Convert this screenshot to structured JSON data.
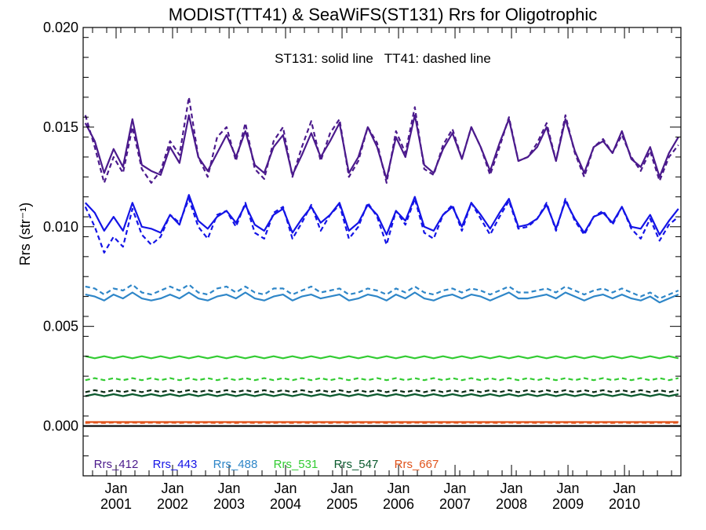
{
  "chart_data": {
    "type": "line",
    "title": "MODIST(TT41) & SeaWiFS(ST131)  Rrs for Oligotrophic",
    "ylabel": "Rrs (str⁻¹)",
    "xlabel": "",
    "annotation": "ST131: solid line   TT41: dashed line",
    "ylim": [
      -0.0025,
      0.02
    ],
    "yticks": [
      "0.000",
      "0.005",
      "0.010",
      "0.015",
      "0.020"
    ],
    "ytick_values": [
      0.0,
      0.005,
      0.01,
      0.015,
      0.02
    ],
    "xlim": [
      "2000-06-01",
      "2010-12-31"
    ],
    "xticks": [
      {
        "month": "Jan",
        "year": "2001",
        "date": "2001-01-01"
      },
      {
        "month": "Jan",
        "year": "2002",
        "date": "2002-01-01"
      },
      {
        "month": "Jan",
        "year": "2003",
        "date": "2003-01-01"
      },
      {
        "month": "Jan",
        "year": "2004",
        "date": "2004-01-01"
      },
      {
        "month": "Jan",
        "year": "2005",
        "date": "2005-01-01"
      },
      {
        "month": "Jan",
        "year": "2006",
        "date": "2006-01-01"
      },
      {
        "month": "Jan",
        "year": "2007",
        "date": "2007-01-01"
      },
      {
        "month": "Jan",
        "year": "2008",
        "date": "2008-01-01"
      },
      {
        "month": "Jan",
        "year": "2009",
        "date": "2009-01-01"
      },
      {
        "month": "Jan",
        "year": "2010",
        "date": "2010-01-01"
      }
    ],
    "x": [
      "2000-06",
      "2000-08",
      "2000-10",
      "2000-12",
      "2001-02",
      "2001-04",
      "2001-06",
      "2001-08",
      "2001-10",
      "2001-12",
      "2002-02",
      "2002-04",
      "2002-06",
      "2002-08",
      "2002-10",
      "2002-12",
      "2003-02",
      "2003-04",
      "2003-06",
      "2003-08",
      "2003-10",
      "2003-12",
      "2004-02",
      "2004-04",
      "2004-06",
      "2004-08",
      "2004-10",
      "2004-12",
      "2005-02",
      "2005-04",
      "2005-06",
      "2005-08",
      "2005-10",
      "2005-12",
      "2006-02",
      "2006-04",
      "2006-06",
      "2006-08",
      "2006-10",
      "2006-12",
      "2007-02",
      "2007-04",
      "2007-06",
      "2007-08",
      "2007-10",
      "2007-12",
      "2008-02",
      "2008-04",
      "2008-06",
      "2008-08",
      "2008-10",
      "2008-12",
      "2009-02",
      "2009-04",
      "2009-06",
      "2009-08",
      "2009-10",
      "2009-12",
      "2010-02",
      "2010-04",
      "2010-06",
      "2010-08",
      "2010-10",
      "2010-12"
    ],
    "series": [
      {
        "name": "Rrs_412",
        "source": "ST131",
        "style": "solid",
        "color": "#4B1A8C",
        "values": [
          0.0152,
          0.0143,
          0.0127,
          0.0139,
          0.013,
          0.0154,
          0.0131,
          0.0128,
          0.0126,
          0.014,
          0.0132,
          0.0156,
          0.0135,
          0.0128,
          0.0137,
          0.0146,
          0.0135,
          0.0148,
          0.0131,
          0.0127,
          0.014,
          0.0146,
          0.0126,
          0.0136,
          0.0147,
          0.0135,
          0.0143,
          0.0152,
          0.0127,
          0.0135,
          0.015,
          0.014,
          0.0124,
          0.0145,
          0.0135,
          0.0156,
          0.0131,
          0.0127,
          0.0139,
          0.0147,
          0.0134,
          0.015,
          0.014,
          0.0128,
          0.0142,
          0.0154,
          0.0133,
          0.0135,
          0.014,
          0.015,
          0.0133,
          0.0154,
          0.0138,
          0.0127,
          0.014,
          0.0143,
          0.0137,
          0.0148,
          0.0134,
          0.013,
          0.014,
          0.0125,
          0.0137,
          0.0145
        ]
      },
      {
        "name": "Rrs_412",
        "source": "TT41",
        "style": "dashed",
        "color": "#4B1A8C",
        "values": [
          0.0156,
          0.014,
          0.0122,
          0.0135,
          0.0127,
          0.015,
          0.0129,
          0.0122,
          0.0128,
          0.0143,
          0.0136,
          0.0165,
          0.0135,
          0.0125,
          0.0145,
          0.015,
          0.0133,
          0.0152,
          0.0129,
          0.0124,
          0.0143,
          0.015,
          0.0125,
          0.014,
          0.0153,
          0.0133,
          0.0147,
          0.0154,
          0.0125,
          0.0133,
          0.015,
          0.0142,
          0.0122,
          0.0148,
          0.0137,
          0.016,
          0.0129,
          0.0126,
          0.0141,
          0.0149,
          0.0134,
          0.015,
          0.014,
          0.0126,
          0.014,
          0.0155,
          0.0133,
          0.0135,
          0.0142,
          0.0152,
          0.0133,
          0.0156,
          0.0137,
          0.0125,
          0.014,
          0.0144,
          0.0137,
          0.0146,
          0.0135,
          0.0128,
          0.0138,
          0.0123,
          0.0135,
          0.0141
        ]
      },
      {
        "name": "Rrs_443",
        "source": "ST131",
        "style": "solid",
        "color": "#1414E6",
        "values": [
          0.0112,
          0.0107,
          0.0098,
          0.0105,
          0.0098,
          0.0112,
          0.01,
          0.0099,
          0.0097,
          0.0106,
          0.0101,
          0.0116,
          0.0103,
          0.0099,
          0.0105,
          0.0108,
          0.0102,
          0.0111,
          0.0101,
          0.0098,
          0.0106,
          0.0109,
          0.0097,
          0.0104,
          0.011,
          0.0102,
          0.0106,
          0.0112,
          0.0098,
          0.0102,
          0.0111,
          0.0106,
          0.0096,
          0.0108,
          0.0103,
          0.0115,
          0.01,
          0.0098,
          0.0106,
          0.011,
          0.01,
          0.0112,
          0.0106,
          0.0099,
          0.0107,
          0.0114,
          0.01,
          0.0101,
          0.0104,
          0.0111,
          0.0099,
          0.0113,
          0.0104,
          0.0097,
          0.0105,
          0.0107,
          0.0102,
          0.011,
          0.01,
          0.0099,
          0.0106,
          0.0096,
          0.0103,
          0.0109
        ]
      },
      {
        "name": "Rrs_443",
        "source": "TT41",
        "style": "dashed",
        "color": "#1414E6",
        "values": [
          0.011,
          0.01,
          0.0087,
          0.0095,
          0.009,
          0.0109,
          0.0096,
          0.0091,
          0.0095,
          0.0106,
          0.0102,
          0.0114,
          0.01,
          0.0094,
          0.0106,
          0.0108,
          0.01,
          0.0112,
          0.0097,
          0.0094,
          0.0107,
          0.011,
          0.0094,
          0.0102,
          0.0111,
          0.0098,
          0.0106,
          0.0111,
          0.0094,
          0.01,
          0.0112,
          0.0105,
          0.0091,
          0.0108,
          0.0101,
          0.0114,
          0.0097,
          0.0094,
          0.0106,
          0.0111,
          0.0098,
          0.0112,
          0.0104,
          0.0096,
          0.0105,
          0.0113,
          0.0099,
          0.01,
          0.0104,
          0.0112,
          0.0098,
          0.0114,
          0.0103,
          0.0096,
          0.0105,
          0.0108,
          0.0101,
          0.011,
          0.0099,
          0.0094,
          0.0104,
          0.0093,
          0.0101,
          0.0105
        ]
      },
      {
        "name": "Rrs_488",
        "source": "ST131",
        "style": "solid",
        "color": "#2E86C8",
        "values": [
          0.0066,
          0.0065,
          0.0063,
          0.0066,
          0.0064,
          0.0067,
          0.0064,
          0.0063,
          0.0064,
          0.0066,
          0.0064,
          0.0067,
          0.0064,
          0.0063,
          0.0065,
          0.0066,
          0.0064,
          0.0067,
          0.0064,
          0.0063,
          0.0065,
          0.0066,
          0.0063,
          0.0065,
          0.0066,
          0.0064,
          0.0065,
          0.0066,
          0.0063,
          0.0064,
          0.0066,
          0.0065,
          0.0063,
          0.0066,
          0.0064,
          0.0067,
          0.0064,
          0.0063,
          0.0065,
          0.0066,
          0.0064,
          0.0066,
          0.0065,
          0.0063,
          0.0065,
          0.0067,
          0.0064,
          0.0064,
          0.0065,
          0.0066,
          0.0064,
          0.0067,
          0.0065,
          0.0063,
          0.0065,
          0.0066,
          0.0064,
          0.0066,
          0.0064,
          0.0063,
          0.0065,
          0.0062,
          0.0064,
          0.0066
        ]
      },
      {
        "name": "Rrs_488",
        "source": "TT41",
        "style": "dashed",
        "color": "#2E86C8",
        "values": [
          0.007,
          0.0069,
          0.0066,
          0.0069,
          0.0068,
          0.0071,
          0.0067,
          0.0066,
          0.0068,
          0.007,
          0.0068,
          0.0071,
          0.0067,
          0.0066,
          0.0069,
          0.007,
          0.0067,
          0.007,
          0.0067,
          0.0066,
          0.0069,
          0.0069,
          0.0066,
          0.0068,
          0.007,
          0.0067,
          0.0068,
          0.0069,
          0.0066,
          0.0067,
          0.0069,
          0.0068,
          0.0066,
          0.0069,
          0.0067,
          0.007,
          0.0067,
          0.0066,
          0.0068,
          0.0069,
          0.0067,
          0.0069,
          0.0068,
          0.0066,
          0.0068,
          0.007,
          0.0067,
          0.0067,
          0.0068,
          0.0069,
          0.0067,
          0.007,
          0.0068,
          0.0066,
          0.0068,
          0.0069,
          0.0067,
          0.0069,
          0.0067,
          0.0065,
          0.0067,
          0.0064,
          0.0066,
          0.0068
        ]
      },
      {
        "name": "Rrs_531",
        "source": "ST131",
        "style": "solid",
        "color": "#33CC33",
        "values": [
          0.0035,
          0.0034,
          0.0035,
          0.0034,
          0.0035,
          0.0034,
          0.0035,
          0.0034,
          0.0035,
          0.0034,
          0.0035,
          0.0034,
          0.0035,
          0.0034,
          0.0035,
          0.0034,
          0.0035,
          0.0034,
          0.0035,
          0.0034,
          0.0035,
          0.0034,
          0.0035,
          0.0034,
          0.0035,
          0.0034,
          0.0035,
          0.0034,
          0.0035,
          0.0034,
          0.0035,
          0.0034,
          0.0035,
          0.0034,
          0.0035,
          0.0034,
          0.0035,
          0.0034,
          0.0035,
          0.0034,
          0.0035,
          0.0034,
          0.0035,
          0.0034,
          0.0035,
          0.0034,
          0.0035,
          0.0034,
          0.0035,
          0.0034,
          0.0035,
          0.0034,
          0.0035,
          0.0034,
          0.0035,
          0.0034,
          0.0035,
          0.0034,
          0.0035,
          0.0034,
          0.0035,
          0.0034,
          0.0035,
          0.0034
        ]
      },
      {
        "name": "Rrs_531",
        "source": "TT41",
        "style": "dashed",
        "color": "#33CC33",
        "values": [
          0.0023,
          0.0024,
          0.0023,
          0.0024,
          0.0023,
          0.0024,
          0.0023,
          0.0024,
          0.0023,
          0.0024,
          0.0023,
          0.0024,
          0.0023,
          0.0024,
          0.0023,
          0.0024,
          0.0023,
          0.0024,
          0.0023,
          0.0024,
          0.0023,
          0.0024,
          0.0023,
          0.0024,
          0.0023,
          0.0024,
          0.0023,
          0.0024,
          0.0023,
          0.0024,
          0.0023,
          0.0024,
          0.0023,
          0.0024,
          0.0023,
          0.0024,
          0.0023,
          0.0024,
          0.0023,
          0.0024,
          0.0023,
          0.0024,
          0.0023,
          0.0024,
          0.0023,
          0.0024,
          0.0023,
          0.0024,
          0.0023,
          0.0024,
          0.0023,
          0.0024,
          0.0023,
          0.0024,
          0.0023,
          0.0024,
          0.0023,
          0.0024,
          0.0023,
          0.0024,
          0.0023,
          0.0024,
          0.0023,
          0.0024
        ]
      },
      {
        "name": "Rrs_547",
        "source": "ST131",
        "style": "solid",
        "color": "#0B5A2E",
        "values": [
          0.0015,
          0.0016,
          0.0015,
          0.0016,
          0.0015,
          0.0016,
          0.0015,
          0.0016,
          0.0015,
          0.0016,
          0.0015,
          0.0016,
          0.0015,
          0.0016,
          0.0015,
          0.0016,
          0.0015,
          0.0016,
          0.0015,
          0.0016,
          0.0015,
          0.0016,
          0.0015,
          0.0016,
          0.0015,
          0.0016,
          0.0015,
          0.0016,
          0.0015,
          0.0016,
          0.0015,
          0.0016,
          0.0015,
          0.0016,
          0.0015,
          0.0016,
          0.0015,
          0.0016,
          0.0015,
          0.0016,
          0.0015,
          0.0016,
          0.0015,
          0.0016,
          0.0015,
          0.0016,
          0.0015,
          0.0016,
          0.0015,
          0.0016,
          0.0015,
          0.0016,
          0.0015,
          0.0016,
          0.0015,
          0.0016,
          0.0015,
          0.0016,
          0.0015,
          0.0016,
          0.0015,
          0.0016,
          0.0015,
          0.0016
        ]
      },
      {
        "name": "Rrs_547",
        "source": "TT41",
        "style": "dashed",
        "color": "#0A2A14",
        "values": [
          0.0017,
          0.0018,
          0.0017,
          0.0018,
          0.0017,
          0.0018,
          0.0017,
          0.0018,
          0.0017,
          0.0018,
          0.0017,
          0.0018,
          0.0017,
          0.0018,
          0.0017,
          0.0018,
          0.0017,
          0.0018,
          0.0017,
          0.0018,
          0.0017,
          0.0018,
          0.0017,
          0.0018,
          0.0017,
          0.0018,
          0.0017,
          0.0018,
          0.0017,
          0.0018,
          0.0017,
          0.0018,
          0.0017,
          0.0018,
          0.0017,
          0.0018,
          0.0017,
          0.0018,
          0.0017,
          0.0018,
          0.0017,
          0.0018,
          0.0017,
          0.0018,
          0.0017,
          0.0018,
          0.0017,
          0.0018,
          0.0017,
          0.0018,
          0.0017,
          0.0018,
          0.0017,
          0.0018,
          0.0017,
          0.0018,
          0.0017,
          0.0018,
          0.0017,
          0.0018,
          0.0017,
          0.0018,
          0.0017,
          0.0018
        ]
      },
      {
        "name": "Rrs_667",
        "source": "ST131",
        "style": "solid",
        "color": "#E0531B",
        "values": [
          0.0002,
          0.0002,
          0.0002,
          0.0002,
          0.0002,
          0.0002,
          0.0002,
          0.0002,
          0.0002,
          0.0002,
          0.0002,
          0.0002,
          0.0002,
          0.0002,
          0.0002,
          0.0002,
          0.0002,
          0.0002,
          0.0002,
          0.0002,
          0.0002,
          0.0002,
          0.0002,
          0.0002,
          0.0002,
          0.0002,
          0.0002,
          0.0002,
          0.0002,
          0.0002,
          0.0002,
          0.0002,
          0.0002,
          0.0002,
          0.0002,
          0.0002,
          0.0002,
          0.0002,
          0.0002,
          0.0002,
          0.0002,
          0.0002,
          0.0002,
          0.0002,
          0.0002,
          0.0002,
          0.0002,
          0.0002,
          0.0002,
          0.0002,
          0.0002,
          0.0002,
          0.0002,
          0.0002,
          0.0002,
          0.0002,
          0.0002,
          0.0002,
          0.0002,
          0.0002,
          0.0002,
          0.0002,
          0.0002,
          0.0002
        ]
      },
      {
        "name": "Rrs_667",
        "source": "TT41",
        "style": "dashed",
        "color": "#E0531B",
        "values": [
          0.00015,
          0.00017,
          0.00015,
          0.00017,
          0.00015,
          0.00017,
          0.00015,
          0.00017,
          0.00015,
          0.00017,
          0.00015,
          0.00017,
          0.00015,
          0.00017,
          0.00015,
          0.00017,
          0.00015,
          0.00017,
          0.00015,
          0.00017,
          0.00015,
          0.00017,
          0.00015,
          0.00017,
          0.00015,
          0.00017,
          0.00015,
          0.00017,
          0.00015,
          0.00017,
          0.00015,
          0.00017,
          0.00015,
          0.00017,
          0.00015,
          0.00017,
          0.00015,
          0.00017,
          0.00015,
          0.00017,
          0.00015,
          0.00017,
          0.00015,
          0.00017,
          0.00015,
          0.00017,
          0.00015,
          0.00017,
          0.00015,
          0.00017,
          0.00015,
          0.00017,
          0.00015,
          0.00017,
          0.00015,
          0.00017,
          0.00015,
          0.00017,
          0.00015,
          0.00017,
          0.00015,
          0.00017,
          0.00015,
          0.00017
        ]
      }
    ],
    "zero_line": 0.0,
    "legend": [
      {
        "label": "Rrs_412",
        "color": "#4B1A8C"
      },
      {
        "label": "Rrs_443",
        "color": "#1414E6"
      },
      {
        "label": "Rrs_488",
        "color": "#2E86C8"
      },
      {
        "label": "Rrs_531",
        "color": "#33CC33"
      },
      {
        "label": "Rrs_547",
        "color": "#0B5A2E"
      },
      {
        "label": "Rrs_667",
        "color": "#E0531B"
      }
    ],
    "legend_placement": "bottom-left inside plot",
    "grid": false
  }
}
